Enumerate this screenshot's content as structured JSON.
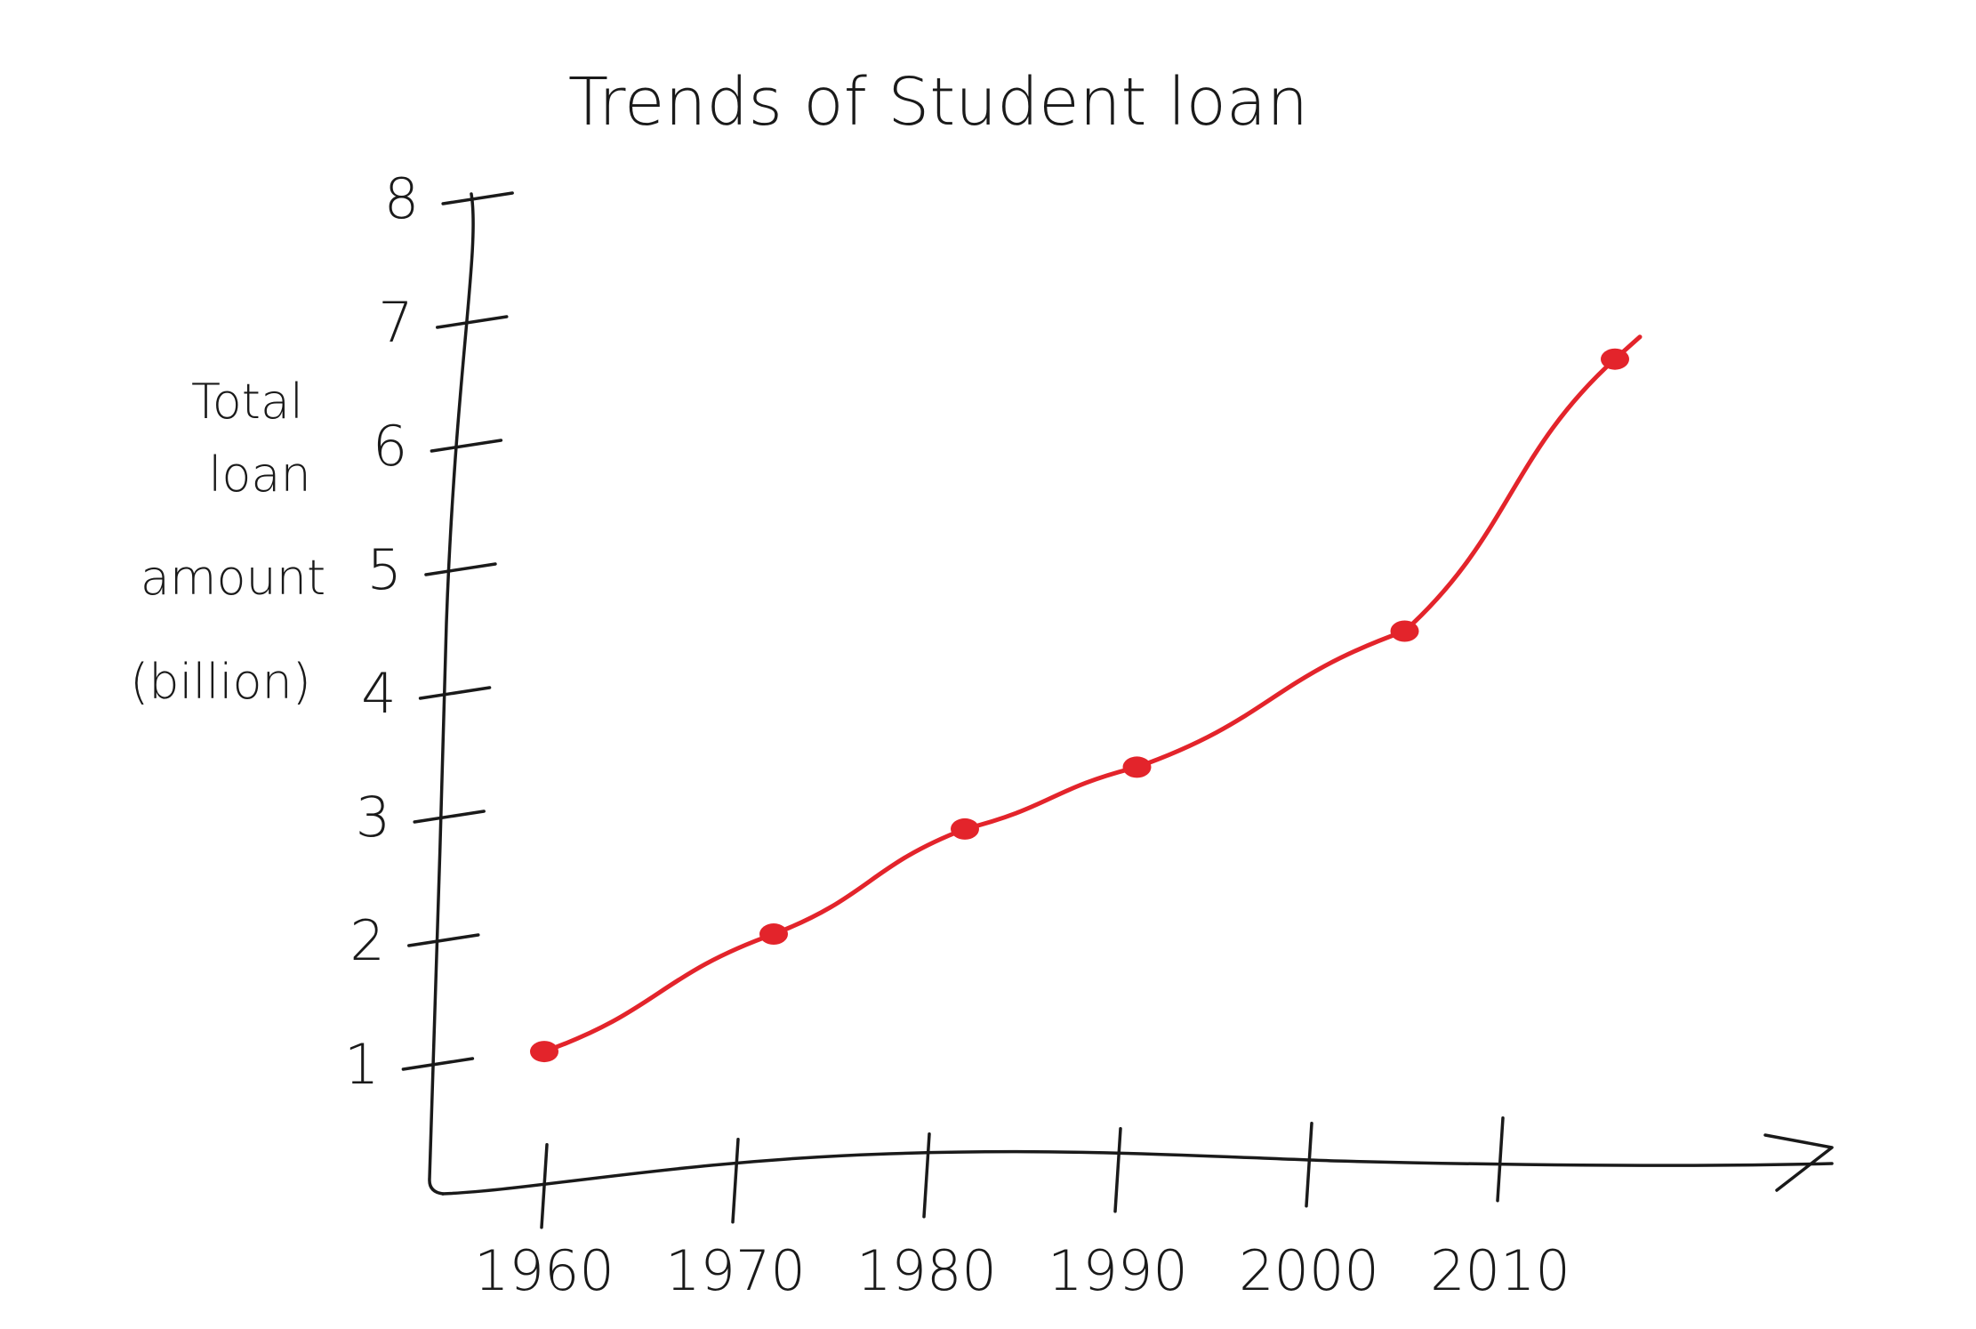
{
  "chart_data": {
    "type": "line",
    "title": "Trends of Student loan",
    "xlabel": "",
    "ylabel": [
      "Total",
      "loan",
      "amount",
      "(billion)"
    ],
    "x": [
      "1960",
      "1970",
      "1980",
      "1990",
      "2000",
      "2010"
    ],
    "y_ticks": [
      "1",
      "2",
      "3",
      "4",
      "5",
      "6",
      "7",
      "8"
    ],
    "series": [
      {
        "x": [
          1960,
          1972,
          1982,
          1991,
          2005,
          2016
        ],
        "values": [
          1.1,
          2.05,
          2.9,
          3.4,
          4.5,
          6.7
        ]
      }
    ],
    "ylim": [
      0,
      8
    ],
    "grid": false,
    "line_color": "#e3242b",
    "ink_color": "#1a1a1a"
  }
}
